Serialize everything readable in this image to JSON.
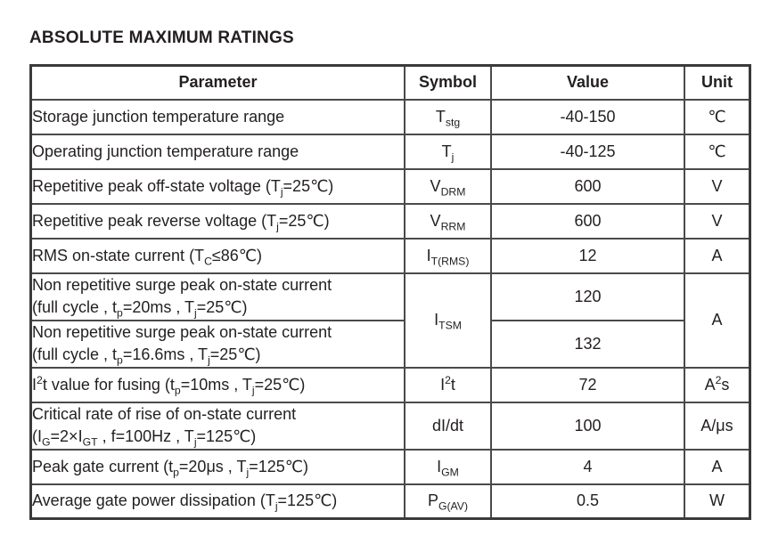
{
  "title": "ABSOLUTE MAXIMUM RATINGS",
  "colors": {
    "text": "#231f20",
    "border": "#4a4a4a",
    "background": "#ffffff"
  },
  "table": {
    "headers": {
      "parameter": "Parameter",
      "symbol": "Symbol",
      "value": "Value",
      "unit": "Unit"
    },
    "rows": [
      {
        "parameter": "Storage junction temperature range",
        "symbol": "T~stg~",
        "value": "-40-150",
        "unit": "℃"
      },
      {
        "parameter": "Operating junction temperature range",
        "symbol": "T~j~",
        "value": "-40-125",
        "unit": "℃"
      },
      {
        "parameter": "Repetitive peak off-state voltage (T~j~=25℃)",
        "symbol": "V~DRM~",
        "value": "600",
        "unit": "V"
      },
      {
        "parameter": "Repetitive peak reverse voltage (T~j~=25℃)",
        "symbol": "V~RRM~",
        "value": "600",
        "unit": "V"
      },
      {
        "parameter": "RMS on-state current (T~C~≤86℃)",
        "symbol": "I~T(RMS)~",
        "value": "12",
        "unit": "A"
      },
      {
        "parameter": "Non repetitive surge peak on-state current\n(full cycle , t~p~=20ms , T~j~=25℃)",
        "symbol": "I~TSM~",
        "value": "120",
        "unit": "A"
      },
      {
        "parameter": "Non repetitive surge peak on-state current\n(full cycle , t~p~=16.6ms , T~j~=25℃)",
        "value": "132"
      },
      {
        "parameter": "I^2^t value for fusing (t~p~=10ms , T~j~=25℃)",
        "symbol": "I^2^t",
        "value": "72",
        "unit": "A^2^s"
      },
      {
        "parameter": "Critical rate of rise of on-state current\n(I~G~=2×I~GT~ , f=100Hz , T~j~=125℃)",
        "symbol": "dI/dt",
        "value": "100",
        "unit": "A/μs"
      },
      {
        "parameter": "Peak gate current (t~p~=20μs , T~j~=125℃)",
        "symbol": "I~GM~",
        "value": "4",
        "unit": "A"
      },
      {
        "parameter": "Average gate power dissipation (T~j~=125℃)",
        "symbol": "P~G(AV)~",
        "value": "0.5",
        "unit": "W"
      }
    ]
  }
}
